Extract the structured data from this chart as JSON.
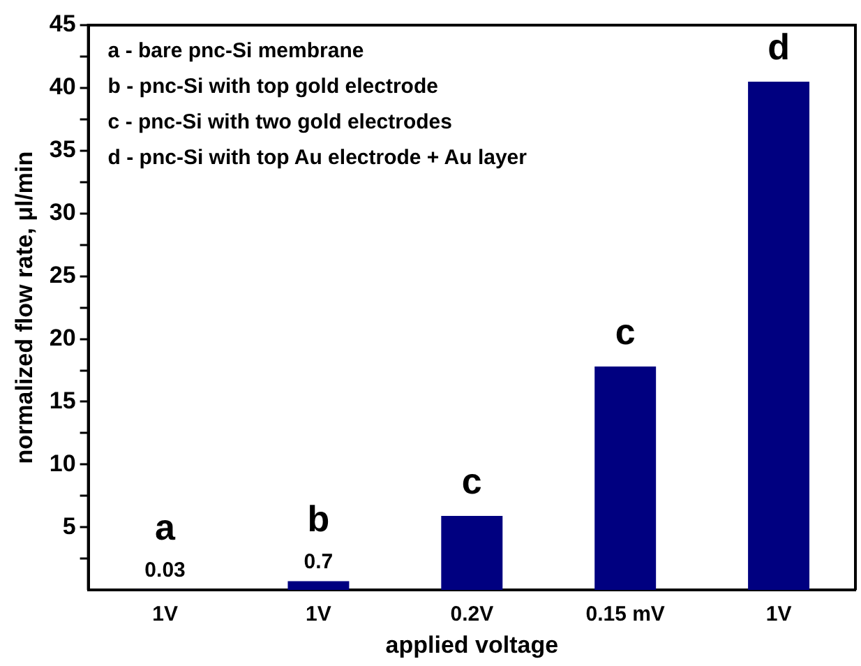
{
  "chart_data": {
    "type": "bar",
    "xlabel": "applied voltage",
    "ylabel": "normalized flow rate, μl/min",
    "categories": [
      "1V",
      "1V",
      "0.2V",
      "0.15 mV",
      "1V"
    ],
    "values": [
      0.03,
      0.7,
      5.9,
      17.8,
      40.5
    ],
    "value_labels": [
      "0.03",
      "0.7",
      null,
      null,
      null
    ],
    "color": "#000080",
    "ylim": [
      0,
      45
    ],
    "yticks": [
      {
        "value": 2.5,
        "label": null
      },
      5,
      {
        "value": 7.5,
        "label": null
      },
      10,
      {
        "value": 12.5,
        "label": null
      },
      15,
      {
        "value": 17.5,
        "label": null
      },
      20,
      {
        "value": 22.5,
        "label": null
      },
      25,
      {
        "value": 27.5,
        "label": null
      },
      30,
      {
        "value": 32.5,
        "label": null
      },
      35,
      {
        "value": 37.5,
        "label": null
      },
      40,
      {
        "value": 42.5,
        "label": null
      },
      45
    ],
    "grid": false,
    "legend": false,
    "annotations": [
      "a - bare pnc-Si membrane",
      "b - pnc-Si with top gold electrode",
      "c - pnc-Si with two gold electrodes",
      "d - pnc-Si with top Au electrode + Au layer",
      "a",
      "b",
      "c",
      "c",
      "d"
    ]
  }
}
